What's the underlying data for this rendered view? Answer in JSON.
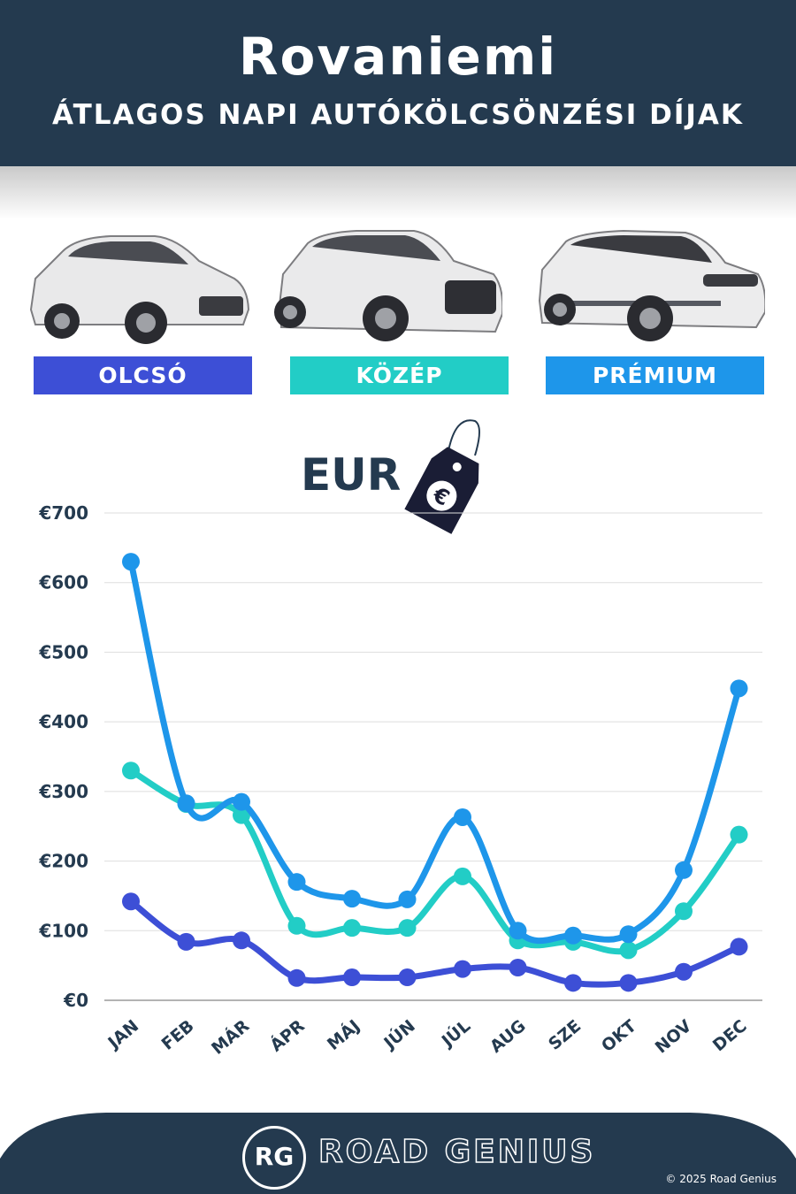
{
  "header": {
    "title": "Rovaniemi",
    "subtitle": "ÁTLAGOS NAPI AUTÓKÖLCSÖNZÉSI DÍJAK"
  },
  "categories": [
    {
      "label": "OLCSÓ",
      "color": "#3d4fd6"
    },
    {
      "label": "KÖZÉP",
      "color": "#22cdc6"
    },
    {
      "label": "PRÉMIUM",
      "color": "#1e96ea"
    }
  ],
  "currency": {
    "label": "EUR",
    "icon": "euro-price-tag-icon",
    "symbol": "€"
  },
  "chart_data": {
    "type": "line",
    "categories": [
      "JAN",
      "FEB",
      "MÁR",
      "ÁPR",
      "MÁJ",
      "JÚN",
      "JÚL",
      "AUG",
      "SZE",
      "OKT",
      "NOV",
      "DEC"
    ],
    "series": [
      {
        "name": "OLCSÓ",
        "color": "#3d4fd6",
        "values": [
          142,
          84,
          86,
          32,
          33,
          33,
          45,
          47,
          25,
          25,
          41,
          77
        ]
      },
      {
        "name": "KÖZÉP",
        "color": "#22cdc6",
        "values": [
          330,
          282,
          266,
          107,
          104,
          104,
          178,
          86,
          84,
          72,
          128,
          238
        ]
      },
      {
        "name": "PRÉMIUM",
        "color": "#1e96ea",
        "values": [
          630,
          283,
          285,
          170,
          146,
          145,
          263,
          100,
          93,
          95,
          187,
          448
        ]
      }
    ],
    "yticks": [
      "€0",
      "€100",
      "€200",
      "€300",
      "€400",
      "€500",
      "€600",
      "€700"
    ],
    "ylim": [
      0,
      700
    ],
    "grid": true
  },
  "footer": {
    "logo_initials": "RG",
    "brand": "ROAD GENIUS",
    "copyright": "© 2025 Road Genius"
  }
}
